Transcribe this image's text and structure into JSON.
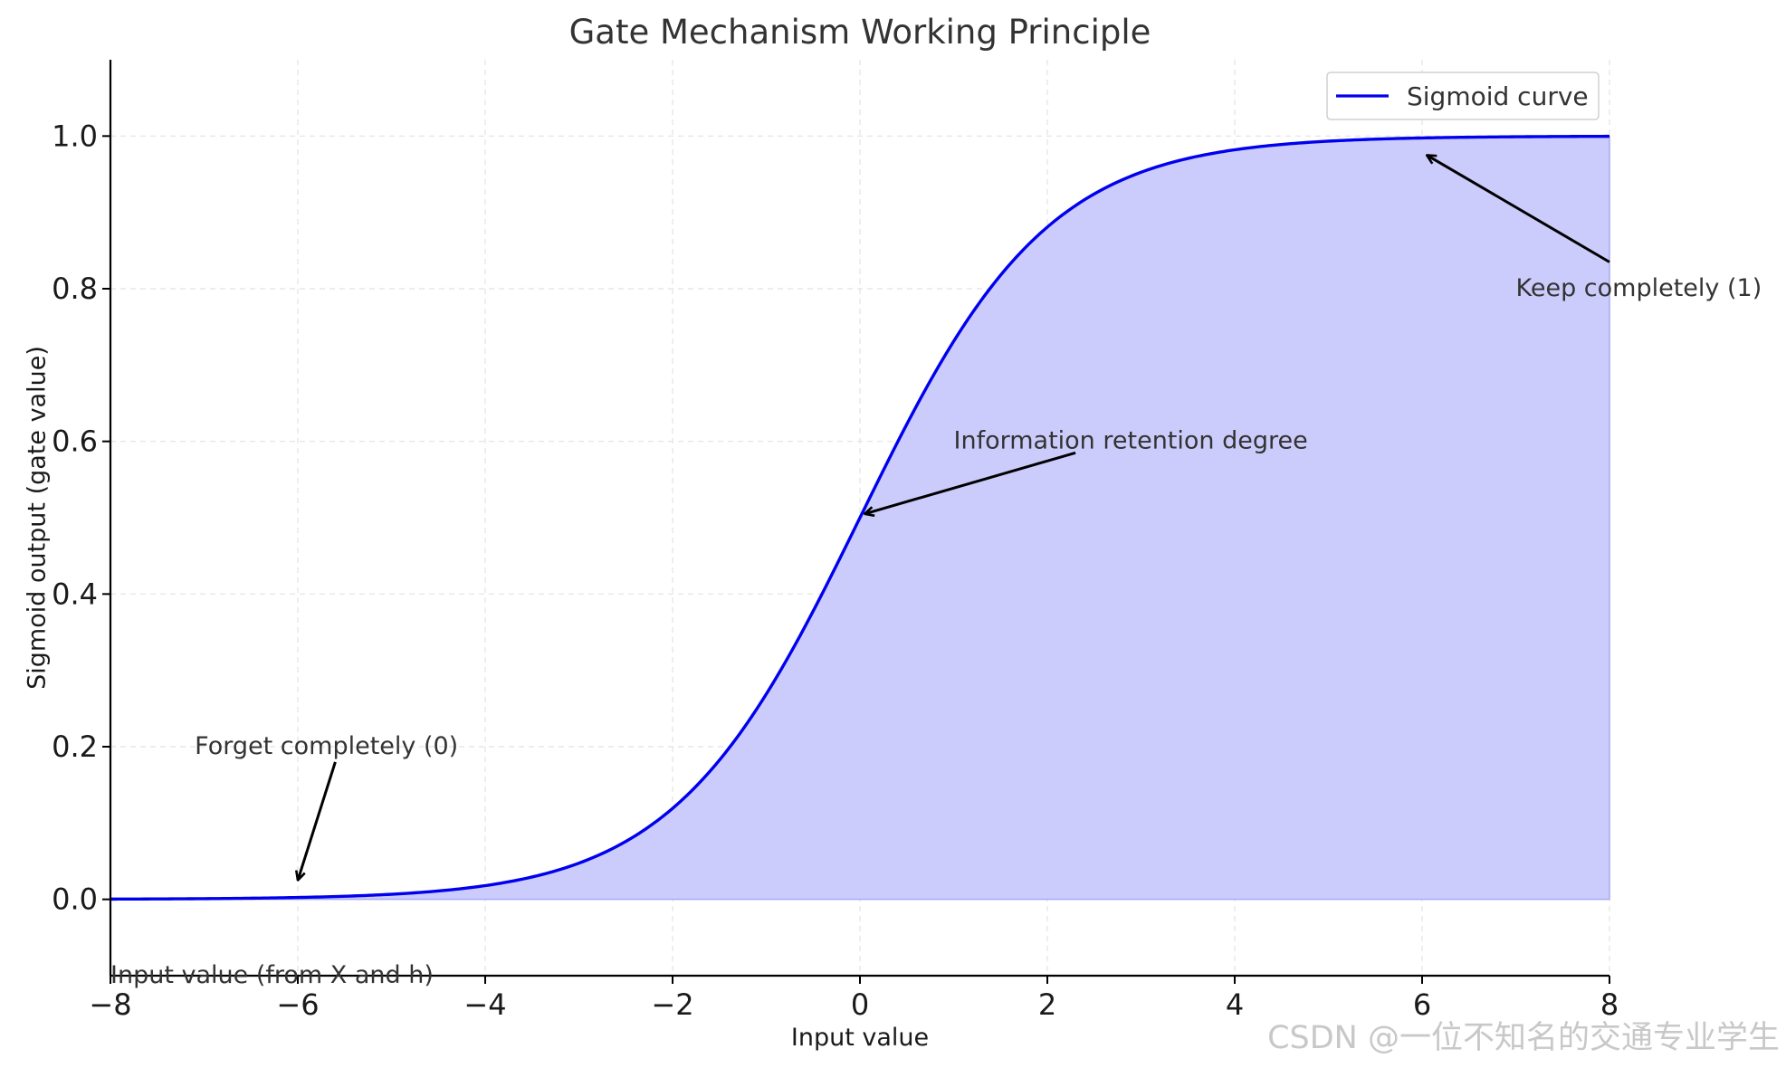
{
  "chart_data": {
    "type": "area",
    "title": "Gate Mechanism Working Principle",
    "xlabel": "Input value",
    "ylabel": "Sigmoid output (gate value)",
    "xlim": [
      -8,
      8
    ],
    "ylim": [
      -0.1,
      1.1
    ],
    "xticks": [
      -8,
      -6,
      -4,
      -2,
      0,
      2,
      4,
      6,
      8
    ],
    "xtick_labels": [
      "−8",
      "−6",
      "−4",
      "−2",
      "0",
      "2",
      "4",
      "6",
      "8"
    ],
    "yticks": [
      0.0,
      0.2,
      0.4,
      0.6,
      0.8,
      1.0
    ],
    "ytick_labels": [
      "0.0",
      "0.2",
      "0.4",
      "0.6",
      "0.8",
      "1.0"
    ],
    "grid": true,
    "legend_position": "top-right",
    "series": [
      {
        "name": "Sigmoid curve",
        "function": "sigmoid",
        "color": "#0000ee",
        "fill_color": "#ccccfc",
        "fill_to": 0,
        "x": [
          -8,
          -7,
          -6,
          -5,
          -4,
          -3,
          -2,
          -1,
          0,
          1,
          2,
          3,
          4,
          5,
          6,
          7,
          8
        ],
        "y": [
          0.0003,
          0.0009,
          0.0025,
          0.0067,
          0.018,
          0.0474,
          0.1192,
          0.2689,
          0.5,
          0.7311,
          0.8808,
          0.9526,
          0.982,
          0.9933,
          0.9975,
          0.9991,
          0.9997
        ]
      }
    ],
    "annotations": [
      {
        "text": "Forget completely (0)",
        "text_xy": [
          -7.1,
          0.2
        ],
        "arrow_to": [
          -6,
          0.025
        ],
        "arrow_from": [
          -5.6,
          0.18
        ]
      },
      {
        "text": "Information retention degree",
        "text_xy": [
          1,
          0.6
        ],
        "arrow_to": [
          0.05,
          0.505
        ],
        "arrow_from": [
          2.3,
          0.585
        ]
      },
      {
        "text": "Keep completely (1)",
        "text_xy": [
          7,
          0.8
        ],
        "arrow_to": [
          6.05,
          0.975
        ],
        "arrow_from": [
          8,
          0.835
        ]
      },
      {
        "text": "Input value (from X and h)",
        "text_xy": [
          -8,
          -0.1
        ]
      }
    ]
  },
  "watermark": "CSDN @一位不知名的交通专业学生"
}
